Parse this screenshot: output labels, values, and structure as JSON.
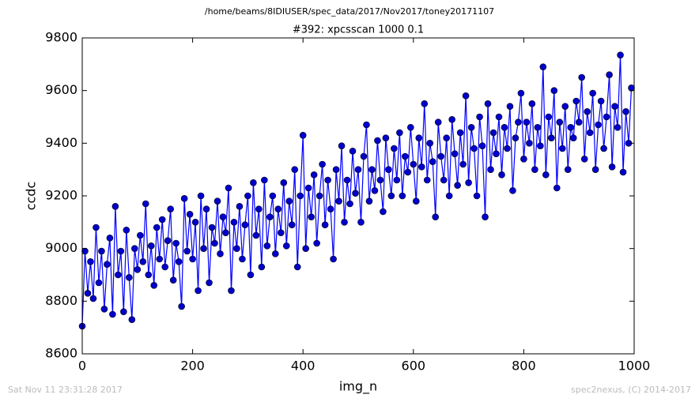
{
  "chart_data": {
    "type": "line",
    "suptitle": "/home/beams/8IDIUSER/spec_data/2017/Nov2017/toney20171107",
    "title": "#392: xpcsscan 1000 0.1",
    "xlabel": "img_n",
    "ylabel": "ccdc",
    "xlim": [
      0,
      1000
    ],
    "xticks": [
      0,
      200,
      400,
      600,
      800,
      1000
    ],
    "ylim": [
      8600,
      9800
    ],
    "yticks": [
      8600,
      8800,
      9000,
      9200,
      9400,
      9600,
      9800
    ],
    "x": [
      0,
      5,
      10,
      15,
      20,
      25,
      30,
      35,
      40,
      45,
      50,
      55,
      60,
      65,
      70,
      75,
      80,
      85,
      90,
      95,
      100,
      105,
      110,
      115,
      120,
      125,
      130,
      135,
      140,
      145,
      150,
      155,
      160,
      165,
      170,
      175,
      180,
      185,
      190,
      195,
      200,
      205,
      210,
      215,
      220,
      225,
      230,
      235,
      240,
      245,
      250,
      255,
      260,
      265,
      270,
      275,
      280,
      285,
      290,
      295,
      300,
      305,
      310,
      315,
      320,
      325,
      330,
      335,
      340,
      345,
      350,
      355,
      360,
      365,
      370,
      375,
      380,
      385,
      390,
      395,
      400,
      405,
      410,
      415,
      420,
      425,
      430,
      435,
      440,
      445,
      450,
      455,
      460,
      465,
      470,
      475,
      480,
      485,
      490,
      495,
      500,
      505,
      510,
      515,
      520,
      525,
      530,
      535,
      540,
      545,
      550,
      555,
      560,
      565,
      570,
      575,
      580,
      585,
      590,
      595,
      600,
      605,
      610,
      615,
      620,
      625,
      630,
      635,
      640,
      645,
      650,
      655,
      660,
      665,
      670,
      675,
      680,
      685,
      690,
      695,
      700,
      705,
      710,
      715,
      720,
      725,
      730,
      735,
      740,
      745,
      750,
      755,
      760,
      765,
      770,
      775,
      780,
      785,
      790,
      795,
      800,
      805,
      810,
      815,
      820,
      825,
      830,
      835,
      840,
      845,
      850,
      855,
      860,
      865,
      870,
      875,
      880,
      885,
      890,
      895,
      900,
      905,
      910,
      915,
      920,
      925,
      930,
      935,
      940,
      945,
      950,
      955,
      960,
      965,
      970,
      975,
      980,
      985,
      990,
      995
    ],
    "series": [
      {
        "color": "#0000ff",
        "marker_color": "#0000cc",
        "values": [
          8705,
          8990,
          8830,
          8950,
          8810,
          9080,
          8870,
          8990,
          8770,
          8940,
          9040,
          8750,
          9160,
          8900,
          8990,
          8760,
          9070,
          8890,
          8730,
          9000,
          8920,
          9050,
          8950,
          9170,
          8900,
          9010,
          8860,
          9080,
          8960,
          9110,
          8930,
          9030,
          9150,
          8880,
          9020,
          8950,
          8780,
          9190,
          8990,
          9130,
          8960,
          9100,
          8840,
          9200,
          9000,
          9150,
          8870,
          9080,
          9020,
          9180,
          8980,
          9120,
          9060,
          9230,
          8840,
          9100,
          9000,
          9160,
          8960,
          9090,
          9200,
          8900,
          9250,
          9050,
          9150,
          8930,
          9260,
          9010,
          9120,
          9200,
          8980,
          9150,
          9060,
          9250,
          9010,
          9180,
          9090,
          9300,
          8930,
          9200,
          9430,
          9000,
          9230,
          9120,
          9280,
          9020,
          9200,
          9320,
          9090,
          9260,
          9150,
          8960,
          9300,
          9180,
          9390,
          9100,
          9260,
          9170,
          9370,
          9210,
          9300,
          9100,
          9350,
          9470,
          9180,
          9300,
          9220,
          9410,
          9260,
          9140,
          9420,
          9300,
          9200,
          9380,
          9260,
          9440,
          9200,
          9350,
          9290,
          9460,
          9320,
          9180,
          9420,
          9310,
          9550,
          9260,
          9400,
          9330,
          9120,
          9480,
          9350,
          9260,
          9420,
          9200,
          9490,
          9360,
          9240,
          9440,
          9320,
          9580,
          9250,
          9460,
          9380,
          9200,
          9500,
          9390,
          9120,
          9550,
          9300,
          9440,
          9360,
          9500,
          9280,
          9460,
          9380,
          9540,
          9220,
          9420,
          9480,
          9590,
          9340,
          9480,
          9400,
          9550,
          9300,
          9460,
          9390,
          9690,
          9280,
          9500,
          9420,
          9600,
          9230,
          9480,
          9380,
          9540,
          9300,
          9460,
          9420,
          9560,
          9480,
          9650,
          9340,
          9520,
          9440,
          9590,
          9300,
          9470,
          9560,
          9380,
          9500,
          9660,
          9310,
          9540,
          9460,
          9735,
          9290,
          9520,
          9400,
          9610
        ]
      }
    ]
  },
  "footer": {
    "left": "Sat Nov 11 23:31:28 2017",
    "right": "spec2nexus, (C) 2014-2017"
  }
}
